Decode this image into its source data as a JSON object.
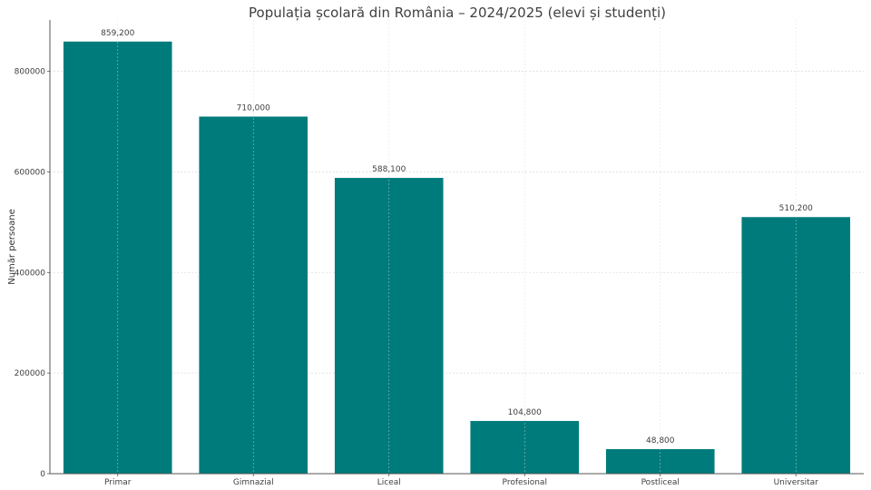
{
  "chart_data": {
    "type": "bar",
    "title": "Populația școlară din România – 2024/2025 (elevi și studenți)",
    "xlabel": "",
    "ylabel": "Număr persoane",
    "categories": [
      "Primar",
      "Gimnazial",
      "Liceal",
      "Profesional",
      "Postliceal",
      "Universitar"
    ],
    "values": [
      859200,
      710000,
      588100,
      104800,
      48800,
      510200
    ],
    "data_labels": [
      "859,200",
      "710,000",
      "588,100",
      "104,800",
      "48,800",
      "510,200"
    ],
    "ylim": [
      0,
      902160
    ],
    "yticks": [
      0,
      200000,
      400000,
      600000,
      800000
    ],
    "ytick_labels": [
      "0",
      "200000",
      "400000",
      "600000",
      "800000"
    ],
    "grid": true,
    "bar_color": "#007b7b",
    "grid_color": "#d9d9d9"
  }
}
